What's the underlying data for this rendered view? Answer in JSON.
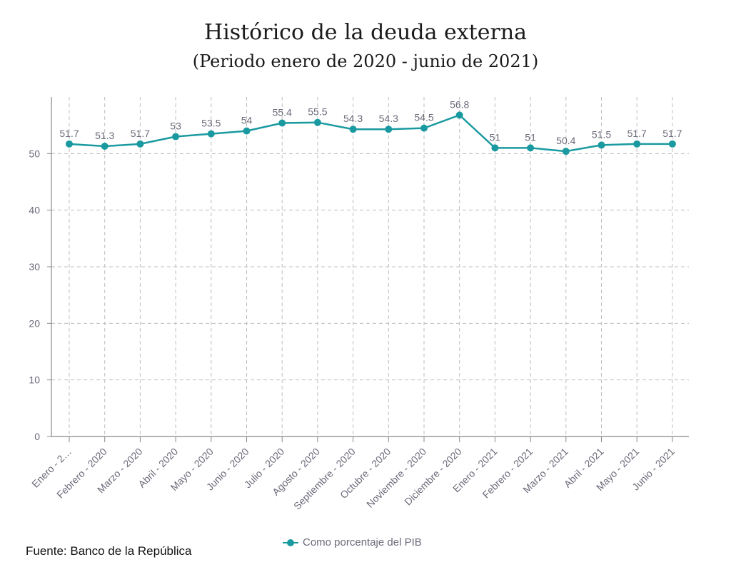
{
  "chart_data": {
    "type": "line",
    "title": "Histórico de la deuda externa",
    "subtitle": "(Periodo enero de 2020 - junio de 2021)",
    "categories": [
      "Enero - 2…",
      "Febrero - 2020",
      "Marzo - 2020",
      "Abril - 2020",
      "Mayo - 2020",
      "Junio - 2020",
      "Julio - 2020",
      "Agosto - 2020",
      "Septiembre - 2020",
      "Octubre - 2020",
      "Noviembre - 2020",
      "Diciembre - 2020",
      "Enero - 2021",
      "Febrero - 2021",
      "Marzo - 2021",
      "Abril - 2021",
      "Mayo - 2021",
      "Junio - 2021"
    ],
    "series": [
      {
        "name": "Como porcentaje del PIB",
        "values": [
          51.7,
          51.3,
          51.7,
          53,
          53.5,
          54,
          55.4,
          55.5,
          54.3,
          54.3,
          54.5,
          56.8,
          51,
          51,
          50.4,
          51.5,
          51.7,
          51.7
        ],
        "color": "#1a9aa0"
      }
    ],
    "ylim": [
      0,
      60
    ],
    "yticks": [
      0,
      10,
      20,
      30,
      40,
      50
    ],
    "grid": true,
    "legend_position": "bottom"
  },
  "source": "Fuente: Banco de la República"
}
